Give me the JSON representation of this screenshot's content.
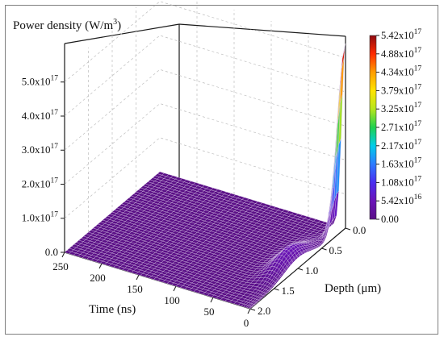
{
  "chart_data": {
    "type": "surface3d",
    "zlabel": {
      "base": "Power density (W/m",
      "sup": "3",
      "tail": ")"
    },
    "xlabel": "Time (ns)",
    "ylabel": "Depth (μm)",
    "x_ticks": [
      "0",
      "50",
      "100",
      "150",
      "200",
      "250"
    ],
    "y_ticks": [
      "0.0",
      "0.5",
      "1.0",
      "1.5",
      "2.0"
    ],
    "z_ticks": [
      {
        "mant": "0.0",
        "exp": ""
      },
      {
        "mant": "1.0x10",
        "exp": "17"
      },
      {
        "mant": "2.0x10",
        "exp": "17"
      },
      {
        "mant": "3.0x10",
        "exp": "17"
      },
      {
        "mant": "4.0x10",
        "exp": "17"
      },
      {
        "mant": "5.0x10",
        "exp": "17"
      }
    ],
    "x_range": [
      0,
      250
    ],
    "y_range": [
      0,
      2.0
    ],
    "z_range": [
      0,
      5.42e+17
    ],
    "colorbar_labels": [
      {
        "mant": "5.42x10",
        "exp": "17"
      },
      {
        "mant": "4.88x10",
        "exp": "17"
      },
      {
        "mant": "4.34x10",
        "exp": "17"
      },
      {
        "mant": "3.79x10",
        "exp": "17"
      },
      {
        "mant": "3.25x10",
        "exp": "17"
      },
      {
        "mant": "2.71x10",
        "exp": "17"
      },
      {
        "mant": "2.17x10",
        "exp": "17"
      },
      {
        "mant": "1.63x10",
        "exp": "17"
      },
      {
        "mant": "1.08x10",
        "exp": "17"
      },
      {
        "mant": "5.42x10",
        "exp": "16"
      },
      {
        "mant": "0.00",
        "exp": ""
      }
    ],
    "colormap": [
      "#5a0f86",
      "#6a14b8",
      "#4a2ef0",
      "#2e7bff",
      "#00cdea",
      "#1fd14f",
      "#b6e61c",
      "#ffe400",
      "#ff9d00",
      "#ff2a00",
      "#8e0a10"
    ],
    "main_peak": {
      "time_ns": 0,
      "depth_um": 0.0,
      "value": 5.42e+17
    },
    "secondary_peak": {
      "time_ns": 12,
      "depth_um": 1.0,
      "value": 5e+16
    },
    "grid_lines_on_walls": true
  }
}
